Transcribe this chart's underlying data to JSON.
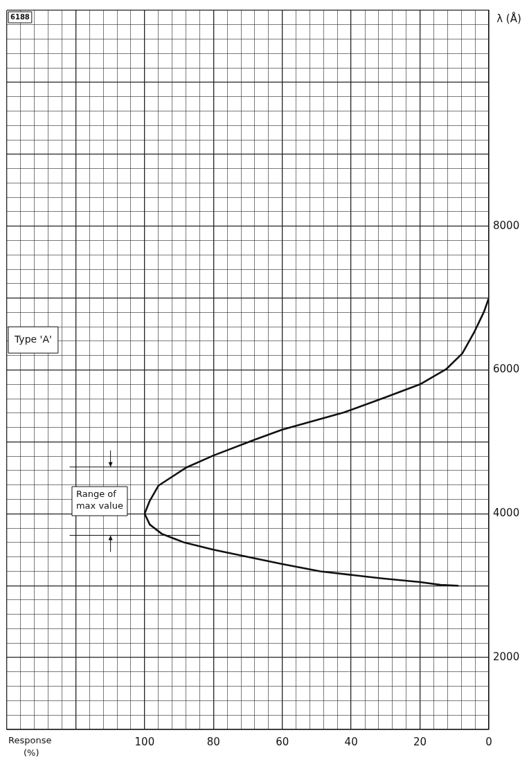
{
  "chart_data": {
    "type": "line",
    "xlabel": "Response (%)",
    "ylabel": "λ (Å)",
    "x": [
      9,
      14,
      20,
      31,
      40,
      49,
      60,
      68,
      80,
      88.5,
      95,
      98.5,
      100,
      98.5,
      96,
      88,
      80,
      68,
      60,
      42,
      30,
      20,
      12.4,
      7.7,
      4.3,
      1.4,
      0
    ],
    "series": [
      {
        "color": "#111111",
        "values": [
          3000,
          3010,
          3050,
          3100,
          3150,
          3200,
          3300,
          3380,
          3500,
          3600,
          3720,
          3850,
          4000,
          4180,
          4390,
          4640,
          4810,
          5030,
          5170,
          5410,
          5620,
          5800,
          6010,
          6230,
          6520,
          6810,
          7000
        ]
      }
    ],
    "ylim": [
      1000,
      11000
    ],
    "yticks": [
      {
        "value": 1000,
        "label": null
      },
      {
        "value": 1200,
        "label": null
      },
      {
        "value": 1400,
        "label": null
      },
      {
        "value": 1600,
        "label": null
      },
      {
        "value": 1800,
        "label": null
      },
      2000,
      {
        "value": 2200,
        "label": null
      },
      {
        "value": 2400,
        "label": null
      },
      {
        "value": 2600,
        "label": null
      },
      {
        "value": 2800,
        "label": null
      },
      {
        "value": 3000,
        "label": null
      },
      {
        "value": 3200,
        "label": null
      },
      {
        "value": 3400,
        "label": null
      },
      {
        "value": 3600,
        "label": null
      },
      {
        "value": 3800,
        "label": null
      },
      4000,
      {
        "value": 4200,
        "label": null
      },
      {
        "value": 4400,
        "label": null
      },
      {
        "value": 4600,
        "label": null
      },
      {
        "value": 4800,
        "label": null
      },
      {
        "value": 5000,
        "label": null
      },
      {
        "value": 5200,
        "label": null
      },
      {
        "value": 5400,
        "label": null
      },
      {
        "value": 5600,
        "label": null
      },
      {
        "value": 5800,
        "label": null
      },
      6000,
      {
        "value": 6200,
        "label": null
      },
      {
        "value": 6400,
        "label": null
      },
      {
        "value": 6600,
        "label": null
      },
      {
        "value": 6800,
        "label": null
      },
      {
        "value": 7000,
        "label": null
      },
      {
        "value": 7200,
        "label": null
      },
      {
        "value": 7400,
        "label": null
      },
      {
        "value": 7600,
        "label": null
      },
      {
        "value": 7800,
        "label": null
      },
      8000,
      {
        "value": 8200,
        "label": null
      },
      {
        "value": 8400,
        "label": null
      },
      {
        "value": 8600,
        "label": null
      },
      {
        "value": 8800,
        "label": null
      },
      {
        "value": 9000,
        "label": null
      },
      {
        "value": 9200,
        "label": null
      },
      {
        "value": 9400,
        "label": null
      },
      {
        "value": 9600,
        "label": null
      },
      {
        "value": 9800,
        "label": null
      },
      {
        "value": 10000,
        "label": null
      },
      {
        "value": 10200,
        "label": null
      },
      {
        "value": 10400,
        "label": null
      },
      {
        "value": 10600,
        "label": null
      },
      {
        "value": 10800,
        "label": null
      },
      {
        "value": 11000,
        "label": null
      }
    ],
    "xlim": [
      140,
      0
    ],
    "xticks": [
      0,
      {
        "value": 4,
        "label": null
      },
      {
        "value": 8,
        "label": null
      },
      {
        "value": 12,
        "label": null
      },
      {
        "value": 16,
        "label": null
      },
      20,
      {
        "value": 24,
        "label": null
      },
      {
        "value": 28,
        "label": null
      },
      {
        "value": 32,
        "label": null
      },
      {
        "value": 36,
        "label": null
      },
      40,
      {
        "value": 44,
        "label": null
      },
      {
        "value": 48,
        "label": null
      },
      {
        "value": 52,
        "label": null
      },
      {
        "value": 56,
        "label": null
      },
      60,
      {
        "value": 64,
        "label": null
      },
      {
        "value": 68,
        "label": null
      },
      {
        "value": 72,
        "label": null
      },
      {
        "value": 76,
        "label": null
      },
      80,
      {
        "value": 84,
        "label": null
      },
      {
        "value": 88,
        "label": null
      },
      {
        "value": 92,
        "label": null
      },
      {
        "value": 96,
        "label": null
      },
      100,
      {
        "value": 104,
        "label": null
      },
      {
        "value": 108,
        "label": null
      },
      {
        "value": 112,
        "label": null
      },
      {
        "value": 116,
        "label": null
      },
      {
        "value": 120,
        "label": null
      },
      {
        "value": 124,
        "label": null
      },
      {
        "value": 128,
        "label": null
      },
      {
        "value": 132,
        "label": null
      },
      {
        "value": 136,
        "label": null
      },
      {
        "value": 140,
        "label": null
      }
    ],
    "ref_lines": [
      {
        "axis": "y",
        "value": 3700
      },
      {
        "axis": "y",
        "value": 4650
      }
    ],
    "annotations": [
      "Type 'A'",
      "6188",
      "Range of max value"
    ],
    "grid": true,
    "legend": false,
    "marker": "none",
    "line_style": "solid"
  }
}
